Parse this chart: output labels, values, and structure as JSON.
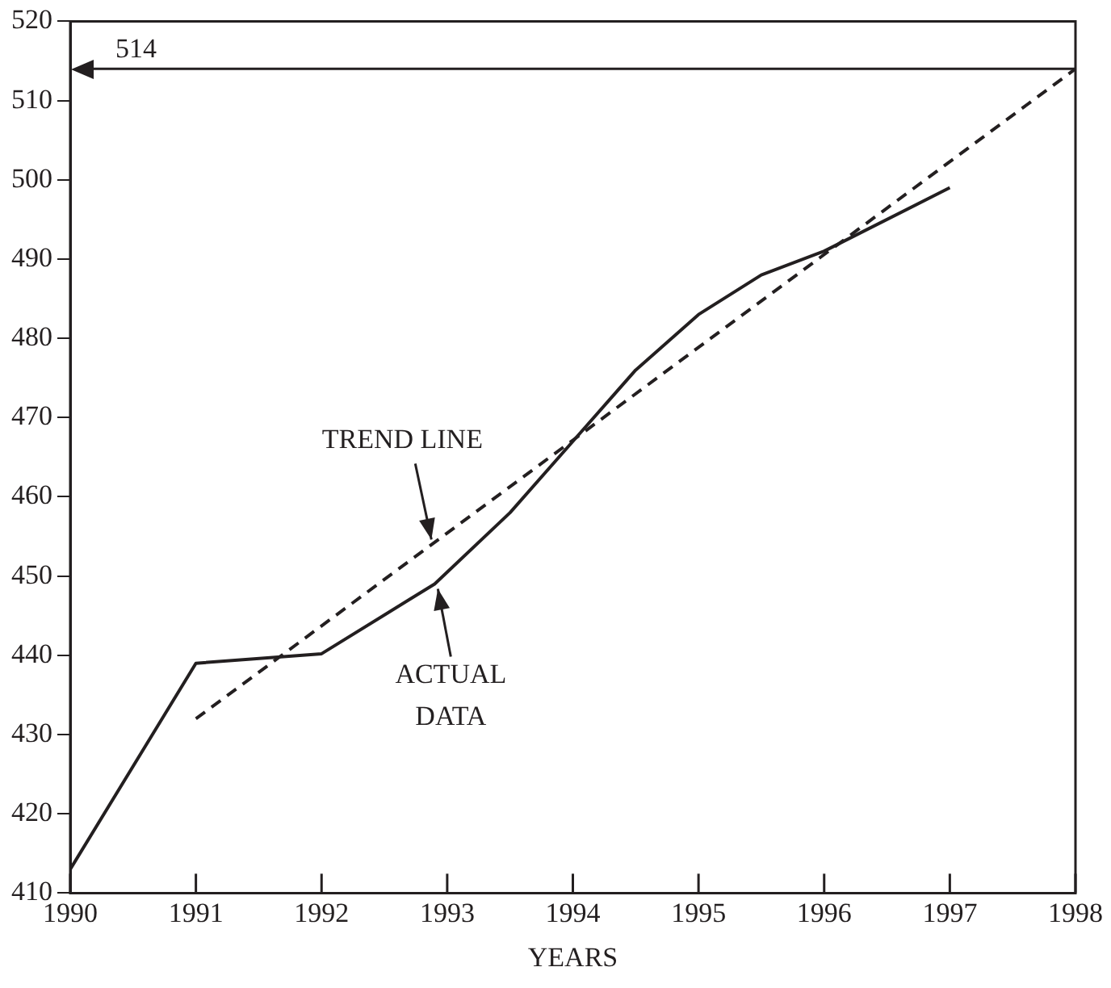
{
  "chart_data": {
    "type": "line",
    "xlabel": "YEARS",
    "xlim": [
      1990,
      1998
    ],
    "xticks": [
      1990,
      1991,
      1992,
      1993,
      1994,
      1995,
      1996,
      1997,
      1998
    ],
    "ylim": [
      410,
      520
    ],
    "yticks": [
      410,
      420,
      430,
      440,
      450,
      460,
      470,
      480,
      490,
      500,
      510,
      520
    ],
    "grid": false,
    "legend": false,
    "marker": "none",
    "series": [
      {
        "color": "#231f20",
        "line_style": "solid",
        "x": [
          1990,
          1991,
          1992,
          1992.9,
          1993.5,
          1994,
          1994.5,
          1995,
          1995.5,
          1996,
          1997
        ],
        "values": [
          413,
          439,
          440.2,
          449,
          458,
          467,
          476,
          483,
          488,
          491,
          499
        ]
      },
      {
        "color": "#231f20",
        "line_style": "dashed",
        "x": [
          1991,
          1998
        ],
        "values": [
          432,
          514
        ]
      }
    ],
    "ref_lines": [
      {
        "axis": "y",
        "value": 514,
        "label": "514",
        "color": "#231f20"
      }
    ],
    "annotations": [
      {
        "text": "TREND LINE",
        "x": 1992.9,
        "y": 454
      },
      {
        "text": "ACTUAL DATA",
        "x": 1992.9,
        "y": 449
      }
    ]
  }
}
